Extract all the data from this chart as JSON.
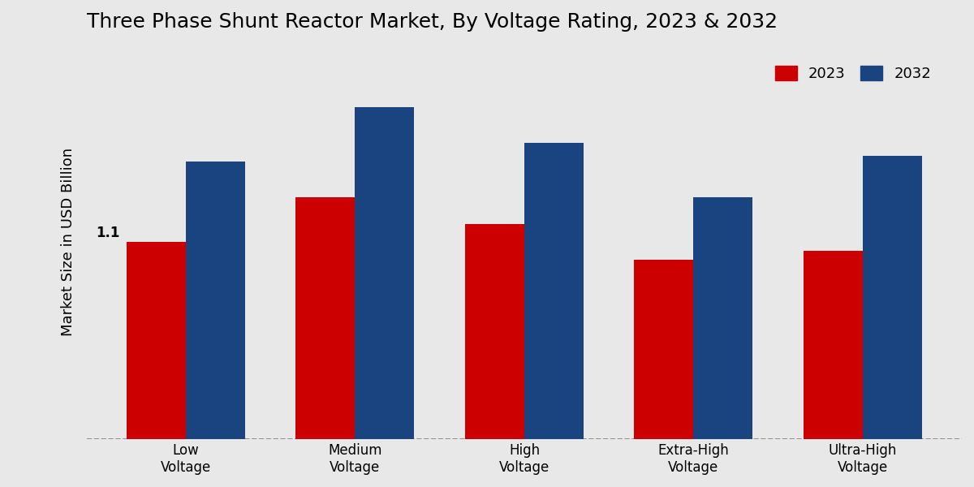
{
  "title": "Three Phase Shunt Reactor Market, By Voltage Rating, 2023 & 2032",
  "ylabel": "Market Size in USD Billion",
  "categories": [
    "Low\nVoltage",
    "Medium\nVoltage",
    "High\nVoltage",
    "Extra-High\nVoltage",
    "Ultra-High\nVoltage"
  ],
  "values_2023": [
    1.1,
    1.35,
    1.2,
    1.0,
    1.05
  ],
  "values_2032": [
    1.55,
    1.85,
    1.65,
    1.35,
    1.58
  ],
  "color_2023": "#cc0000",
  "color_2032": "#1a4480",
  "annotation_text": "1.1",
  "annotation_bar_index": 0,
  "annotation_year": "2023",
  "bar_width": 0.35,
  "background_color": "#e8e8e8",
  "legend_labels": [
    "2023",
    "2032"
  ],
  "title_fontsize": 18,
  "ylabel_fontsize": 13,
  "tick_fontsize": 12
}
